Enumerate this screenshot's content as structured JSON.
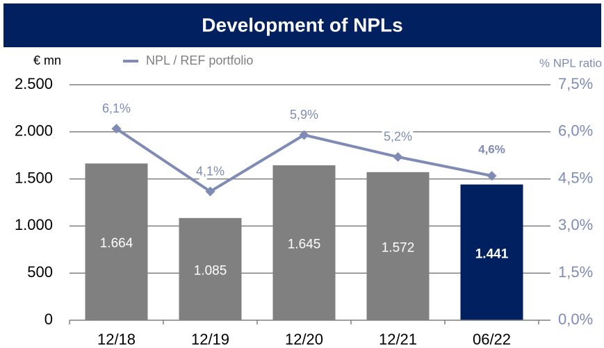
{
  "chart_data": {
    "type": "bar-line",
    "title": "Development of NPLs",
    "y_label": "€ mn",
    "y2_label": "% NPL ratio",
    "categories": [
      "12/18",
      "12/19",
      "12/20",
      "12/21",
      "06/22"
    ],
    "series": [
      {
        "name": null,
        "type": "bar",
        "colors": [
          "#808080",
          "#808080",
          "#808080",
          "#808080",
          "#002060"
        ],
        "values": [
          1664,
          1085,
          1645,
          1572,
          1441
        ],
        "value_labels": [
          "1.664",
          "1.085",
          "1.645",
          "1.572",
          "1.441"
        ]
      },
      {
        "name": "NPL / REF portfolio",
        "type": "line",
        "axis": "y2",
        "color": "#7f8bb5",
        "values": [
          6.1,
          4.1,
          5.9,
          5.2,
          4.6
        ],
        "value_labels": [
          "6,1%",
          "4,1%",
          "5,9%",
          "5,2%",
          "4,6%"
        ]
      }
    ],
    "ylim": [
      0,
      2500
    ],
    "yticks": [
      0,
      500,
      {
        "value": 1000,
        "label": "1.000"
      },
      {
        "value": 1500,
        "label": "1.500"
      },
      {
        "value": 2000,
        "label": "2.000"
      },
      {
        "value": 2500,
        "label": "2.500"
      }
    ],
    "y2lim": [
      0,
      7.5
    ],
    "y2ticks": [
      {
        "value": 0,
        "label": "0,0%"
      },
      {
        "value": 1.5,
        "label": "1,5%"
      },
      {
        "value": 3,
        "label": "3,0%"
      },
      {
        "value": 4.5,
        "label": "4,5%"
      },
      {
        "value": 6,
        "label": "6,0%"
      },
      {
        "value": 7.5,
        "label": "7,5%"
      }
    ],
    "grid": true,
    "legend": "top"
  }
}
